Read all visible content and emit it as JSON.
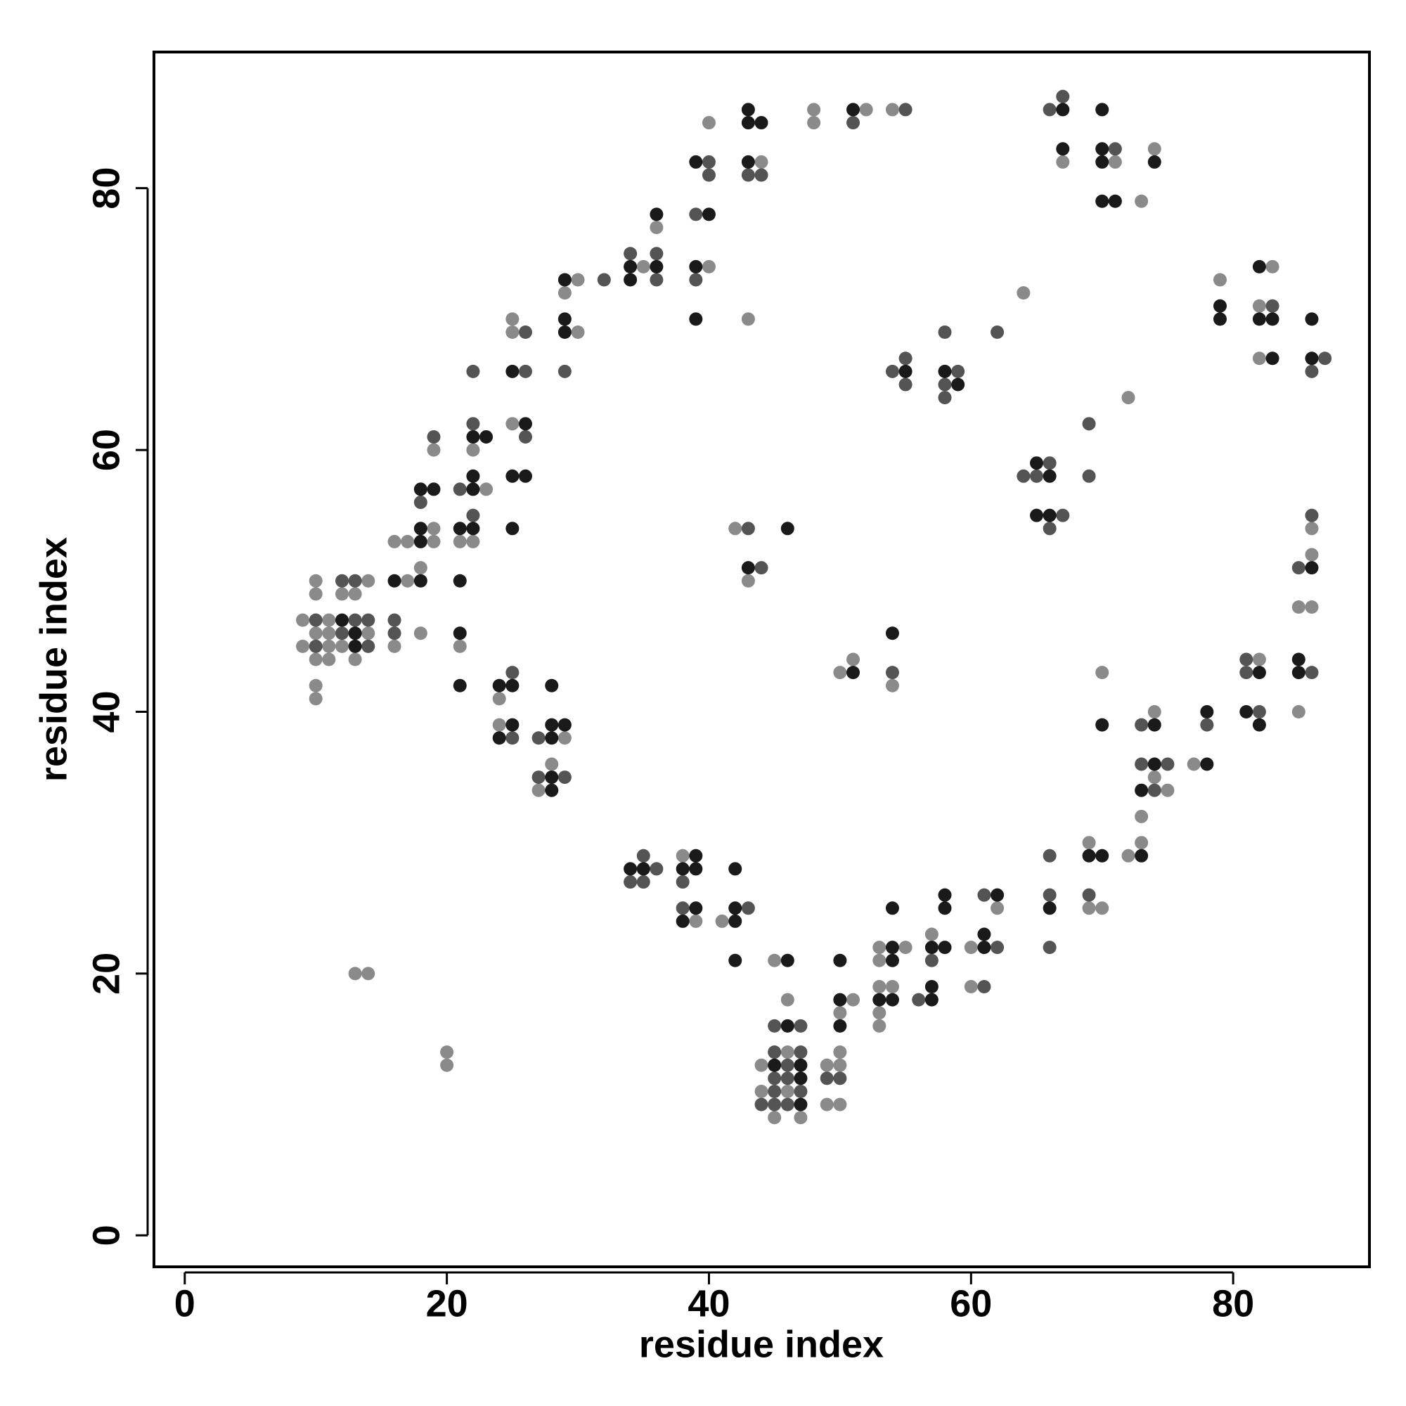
{
  "chart_data": {
    "type": "scatter",
    "xlabel": "residue index",
    "ylabel": "residue index",
    "xlim": [
      -2.35,
      90.4
    ],
    "ylim": [
      -2.4,
      90.4
    ],
    "xticks": [
      0,
      20,
      40,
      60,
      80
    ],
    "yticks": [
      0,
      20,
      40,
      60,
      80
    ],
    "series": [
      {
        "color": "#8a8a8a",
        "x": [
          9,
          9,
          10,
          10,
          10,
          10,
          10,
          10,
          11,
          11,
          11,
          11,
          12,
          12,
          13,
          13,
          13,
          14,
          14,
          14,
          16,
          16,
          17,
          17,
          18,
          18,
          19,
          19,
          19,
          20,
          20,
          21,
          21,
          22,
          22,
          23,
          24,
          24,
          25,
          25,
          25,
          27,
          28,
          29,
          29,
          30,
          30,
          35,
          36,
          38,
          39,
          40,
          40,
          41,
          42,
          43,
          43,
          44,
          45,
          45,
          46,
          46,
          46,
          47,
          44,
          44,
          48,
          48,
          49,
          49,
          50,
          50,
          50,
          50,
          50,
          51,
          51,
          52,
          53,
          53,
          53,
          53,
          53,
          54,
          54,
          54,
          55,
          57,
          60,
          60,
          62,
          64,
          67,
          69,
          69,
          70,
          70,
          71,
          72,
          72,
          73,
          73,
          73,
          74,
          74,
          74,
          75,
          77,
          79,
          82,
          82,
          82,
          83,
          85,
          85,
          86,
          86,
          86
        ],
        "y": [
          47,
          45,
          50,
          49,
          46,
          44,
          42,
          41,
          47,
          46,
          45,
          44,
          49,
          45,
          49,
          44,
          20,
          50,
          46,
          20,
          53,
          45,
          53,
          50,
          51,
          46,
          60,
          54,
          53,
          14,
          13,
          53,
          45,
          60,
          53,
          57,
          41,
          39,
          70,
          69,
          62,
          34,
          36,
          72,
          38,
          73,
          69,
          74,
          77,
          29,
          24,
          85,
          74,
          24,
          54,
          70,
          50,
          82,
          21,
          9,
          18,
          14,
          11,
          9,
          13,
          11,
          86,
          85,
          13,
          10,
          43,
          17,
          14,
          13,
          10,
          44,
          18,
          86,
          22,
          21,
          19,
          17,
          16,
          86,
          42,
          19,
          22,
          23,
          22,
          19,
          25,
          72,
          82,
          30,
          25,
          43,
          25,
          82,
          64,
          29,
          79,
          32,
          30,
          83,
          40,
          35,
          34,
          36,
          73,
          71,
          67,
          44,
          74,
          48,
          40,
          54,
          52,
          48
        ]
      },
      {
        "color": "#545454",
        "x": [
          10,
          10,
          12,
          12,
          13,
          13,
          14,
          14,
          16,
          16,
          18,
          19,
          21,
          22,
          22,
          22,
          25,
          25,
          26,
          26,
          26,
          27,
          27,
          29,
          29,
          32,
          34,
          34,
          35,
          35,
          36,
          36,
          36,
          38,
          38,
          39,
          39,
          40,
          40,
          43,
          43,
          43,
          44,
          44,
          45,
          45,
          45,
          45,
          45,
          46,
          46,
          46,
          47,
          47,
          47,
          44,
          49,
          50,
          51,
          54,
          54,
          55,
          55,
          55,
          56,
          57,
          58,
          58,
          58,
          59,
          61,
          61,
          62,
          62,
          64,
          65,
          66,
          66,
          66,
          66,
          66,
          66,
          67,
          67,
          69,
          69,
          69,
          71,
          73,
          73,
          74,
          75,
          78,
          81,
          81,
          82,
          83,
          85,
          86,
          86,
          86,
          87
        ],
        "y": [
          47,
          45,
          50,
          46,
          50,
          47,
          47,
          45,
          47,
          46,
          56,
          61,
          57,
          66,
          62,
          55,
          43,
          38,
          69,
          66,
          61,
          38,
          35,
          66,
          35,
          73,
          75,
          27,
          29,
          27,
          75,
          73,
          28,
          27,
          25,
          78,
          73,
          82,
          81,
          81,
          54,
          25,
          81,
          51,
          16,
          14,
          12,
          11,
          10,
          13,
          12,
          10,
          16,
          14,
          11,
          10,
          12,
          12,
          85,
          43,
          66,
          86,
          67,
          65,
          18,
          21,
          69,
          65,
          64,
          66,
          26,
          19,
          69,
          22,
          58,
          58,
          59,
          54,
          29,
          26,
          22,
          86,
          87,
          55,
          62,
          58,
          26,
          83,
          39,
          36,
          34,
          36,
          39,
          44,
          43,
          40,
          71,
          51,
          66,
          55,
          43,
          67
        ]
      },
      {
        "color": "#1a1a1a",
        "x": [
          12,
          13,
          13,
          16,
          18,
          18,
          18,
          18,
          19,
          21,
          21,
          21,
          21,
          22,
          22,
          22,
          22,
          23,
          24,
          24,
          25,
          25,
          25,
          25,
          25,
          26,
          26,
          28,
          28,
          28,
          28,
          28,
          29,
          29,
          29,
          29,
          34,
          34,
          34,
          35,
          36,
          36,
          38,
          38,
          39,
          39,
          39,
          39,
          39,
          39,
          40,
          42,
          42,
          42,
          42,
          43,
          43,
          43,
          43,
          44,
          45,
          46,
          46,
          46,
          47,
          47,
          47,
          50,
          50,
          50,
          51,
          51,
          53,
          54,
          54,
          54,
          54,
          54,
          55,
          57,
          57,
          57,
          58,
          58,
          58,
          58,
          59,
          61,
          61,
          62,
          65,
          65,
          66,
          66,
          66,
          67,
          67,
          69,
          70,
          70,
          70,
          70,
          70,
          70,
          71,
          73,
          73,
          74,
          74,
          74,
          78,
          78,
          79,
          79,
          81,
          82,
          82,
          82,
          82,
          83,
          83,
          85,
          85,
          86,
          86,
          86
        ],
        "y": [
          47,
          46,
          45,
          50,
          57,
          54,
          53,
          50,
          57,
          54,
          50,
          46,
          42,
          61,
          58,
          57,
          54,
          61,
          42,
          38,
          66,
          58,
          54,
          42,
          39,
          62,
          58,
          42,
          39,
          38,
          35,
          34,
          73,
          70,
          69,
          39,
          74,
          73,
          28,
          28,
          78,
          74,
          28,
          24,
          82,
          74,
          70,
          29,
          28,
          25,
          78,
          28,
          25,
          24,
          21,
          86,
          85,
          82,
          51,
          85,
          13,
          54,
          21,
          16,
          13,
          12,
          10,
          21,
          18,
          16,
          86,
          43,
          18,
          46,
          25,
          22,
          21,
          18,
          66,
          22,
          19,
          18,
          66,
          26,
          25,
          22,
          65,
          23,
          22,
          26,
          59,
          55,
          58,
          55,
          25,
          86,
          83,
          29,
          86,
          83,
          82,
          79,
          39,
          29,
          79,
          34,
          29,
          82,
          39,
          36,
          40,
          36,
          71,
          70,
          40,
          74,
          70,
          43,
          39,
          70,
          67,
          44,
          43,
          70,
          67,
          51
        ]
      }
    ]
  }
}
